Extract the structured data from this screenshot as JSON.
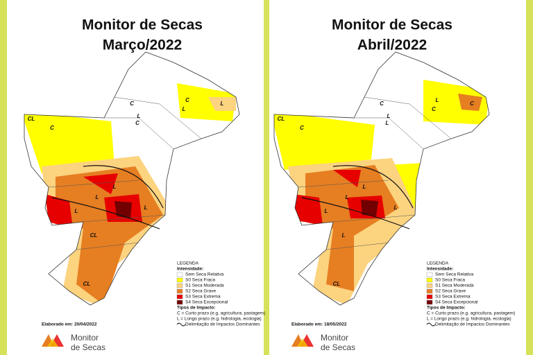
{
  "panels": [
    {
      "title": "Monitor de Secas",
      "subtitle": "Março/2022",
      "date": "Elaborado em: 20/04/2022",
      "map_labels": [
        "CL",
        "C",
        "C",
        "L",
        "C",
        "L",
        "L",
        "C",
        "L",
        "L",
        "L",
        "L",
        "CL",
        "CL"
      ]
    },
    {
      "title": "Monitor de Secas",
      "subtitle": "Abril/2022",
      "date": "Elaborado em: 18/05/2022",
      "map_labels": [
        "CL",
        "C",
        "C",
        "L",
        "L",
        "C",
        "C",
        "L",
        "L",
        "L",
        "L",
        "L",
        "L",
        "CL"
      ]
    }
  ],
  "legend": {
    "title": "LEGENDA",
    "intensity_title": "Intensidade:",
    "items": [
      {
        "label": "Sem Seca Relativa",
        "color": "#ffffff"
      },
      {
        "label": "S0 Seca Fraca",
        "color": "#ffff00"
      },
      {
        "label": "S1 Seca Moderada",
        "color": "#fcd37f"
      },
      {
        "label": "S2 Seca Grave",
        "color": "#e67e22"
      },
      {
        "label": "S3 Seca Extrema",
        "color": "#e60000"
      },
      {
        "label": "S4 Seca Excepcional",
        "color": "#730000"
      }
    ],
    "impact_title": "Tipos de Impacto:",
    "impacts": [
      "C = Curto prazo (e.g. agricultura, pastagem)",
      "L = Longo prazo (e.g. hidrologia, ecologia)",
      "Delimitação de Impactos Dominantes"
    ]
  },
  "logo": {
    "line1": "Monitor",
    "line2": "de Secas"
  }
}
